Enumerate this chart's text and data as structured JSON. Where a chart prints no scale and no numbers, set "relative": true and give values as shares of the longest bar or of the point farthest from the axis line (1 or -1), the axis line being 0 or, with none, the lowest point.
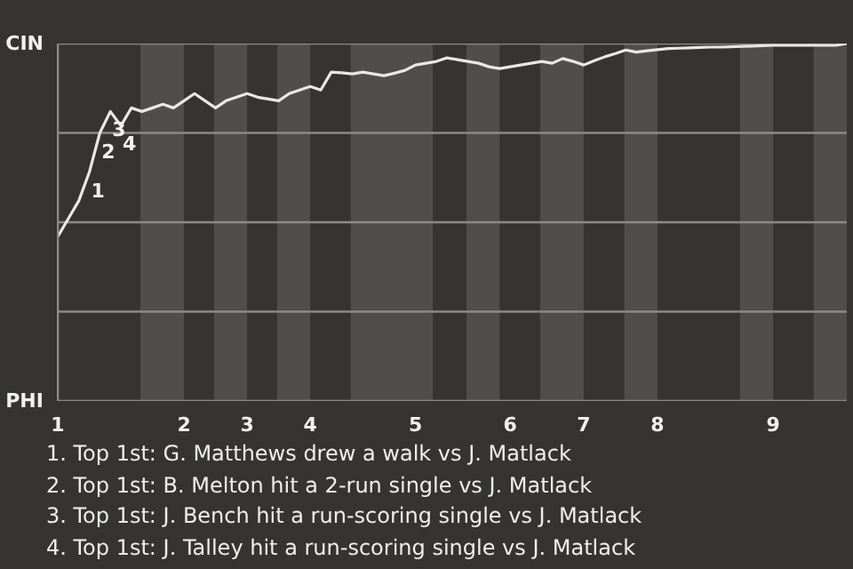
{
  "chart_data": {
    "type": "line",
    "relative": true,
    "categories": [
      "1",
      null,
      null,
      null,
      null,
      null,
      null,
      null,
      null,
      null,
      null,
      null,
      "2",
      null,
      null,
      null,
      null,
      null,
      "3",
      null,
      null,
      null,
      null,
      null,
      "4",
      null,
      null,
      null,
      null,
      null,
      null,
      null,
      null,
      null,
      "5",
      null,
      null,
      null,
      null,
      null,
      null,
      null,
      null,
      "6",
      null,
      null,
      null,
      null,
      null,
      null,
      "7",
      null,
      null,
      null,
      null,
      null,
      null,
      "8",
      null,
      null,
      null,
      null,
      null,
      null,
      null,
      null,
      null,
      null,
      "9",
      null,
      null,
      null,
      null,
      null,
      null,
      null
    ],
    "series": [
      {
        "color": "#e8e8e8",
        "values": [
          0.46,
          0.51,
          0.56,
          0.64,
          0.75,
          0.81,
          0.77,
          0.82,
          0.81,
          0.82,
          0.83,
          0.82,
          0.84,
          0.86,
          0.84,
          0.82,
          0.84,
          0.85,
          0.86,
          0.85,
          0.845,
          0.84,
          0.86,
          0.87,
          0.88,
          0.87,
          0.92,
          0.918,
          0.915,
          0.92,
          0.915,
          0.91,
          0.917,
          0.925,
          0.94,
          0.945,
          0.95,
          0.96,
          0.955,
          0.95,
          0.945,
          0.935,
          0.93,
          0.935,
          0.94,
          0.945,
          0.95,
          0.945,
          0.958,
          0.95,
          0.94,
          0.952,
          0.963,
          0.972,
          0.982,
          0.976,
          0.98,
          0.983,
          0.986,
          0.987,
          0.988,
          0.989,
          0.99,
          0.99,
          0.991,
          0.992,
          0.993,
          0.994,
          0.995,
          0.995,
          0.995,
          0.995,
          0.995,
          0.995,
          0.995,
          1.0
        ]
      }
    ],
    "ref_lines": [
      {
        "axis": "y",
        "value": 1,
        "label": "CIN",
        "color": "#8a8a8a"
      },
      {
        "axis": "y",
        "value": 0.75,
        "color": "#8a8a8a"
      },
      {
        "axis": "y",
        "value": 0.5,
        "color": "#8a8a8a"
      },
      {
        "axis": "y",
        "value": 0.25,
        "color": "#8a8a8a"
      },
      {
        "axis": "y",
        "value": 0,
        "label": "PHI",
        "color": "#8a8a8a"
      }
    ],
    "annotations": [
      {
        "text": "1",
        "y": 0.64
      },
      {
        "text": "2",
        "y": 0.75
      },
      {
        "text": "3",
        "y": 0.81
      },
      {
        "text": "4",
        "y": 0.77
      },
      "1. Top 1st: G. Matthews drew a walk vs J. Matlack",
      "2. Top 1st: B. Melton hit a 2-run single vs J. Matlack",
      "3. Top 1st: J. Bench hit a run-scoring single vs J. Matlack",
      "4. Top 1st: J. Talley hit a run-scoring single vs J. Matlack"
    ]
  }
}
